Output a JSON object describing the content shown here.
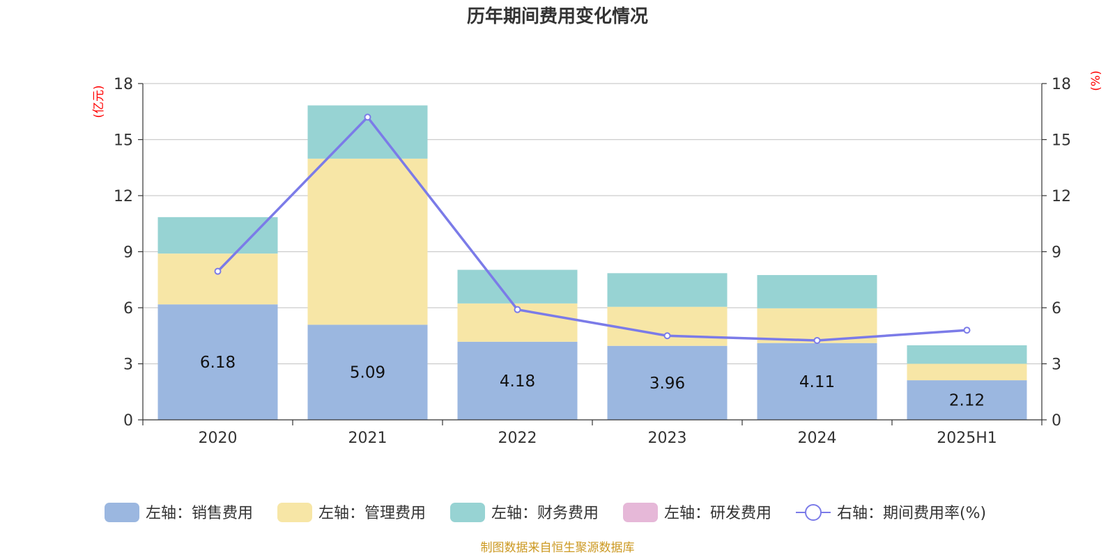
{
  "chart_data": {
    "type": "bar",
    "stacked": true,
    "title": "历年期间费用变化情况",
    "categories": [
      "2020",
      "2021",
      "2022",
      "2023",
      "2024",
      "2025H1"
    ],
    "left_axis": {
      "unit": "(亿元)",
      "ylim": [
        0,
        18
      ],
      "ticks": [
        "0",
        "3",
        "6",
        "9",
        "12",
        "15",
        "18"
      ]
    },
    "right_axis": {
      "unit": "(%)",
      "ylim": [
        0,
        18
      ],
      "ticks": [
        "0",
        "3",
        "6",
        "9",
        "12",
        "15",
        "18"
      ]
    },
    "series": [
      {
        "name": "左轴：销售费用",
        "axis": "left",
        "kind": "bar",
        "color": "#9bb7e0",
        "values": [
          6.18,
          5.09,
          4.18,
          3.96,
          4.11,
          2.12
        ],
        "labels": [
          "6.18",
          "5.09",
          "4.18",
          "3.96",
          "4.11",
          "2.12"
        ]
      },
      {
        "name": "左轴：管理费用",
        "axis": "left",
        "kind": "bar",
        "color": "#f7e6a6",
        "values": [
          2.72,
          8.89,
          2.05,
          2.09,
          1.86,
          0.88
        ]
      },
      {
        "name": "左轴：财务费用",
        "axis": "left",
        "kind": "bar",
        "color": "#97d3d3",
        "values": [
          1.95,
          2.85,
          1.8,
          1.8,
          1.78,
          0.99
        ]
      },
      {
        "name": "左轴：研发费用",
        "axis": "left",
        "kind": "bar",
        "color": "#e6b8d8",
        "values": [
          0,
          0,
          0,
          0,
          0,
          0
        ]
      },
      {
        "name": "右轴：期间费用率(%)",
        "axis": "right",
        "kind": "line",
        "color": "#7b7be8",
        "values": [
          7.95,
          16.2,
          5.9,
          4.5,
          4.25,
          4.8
        ]
      }
    ],
    "legend_position": "bottom",
    "grid": true
  },
  "source_text": "制图数据来自恒生聚源数据库"
}
